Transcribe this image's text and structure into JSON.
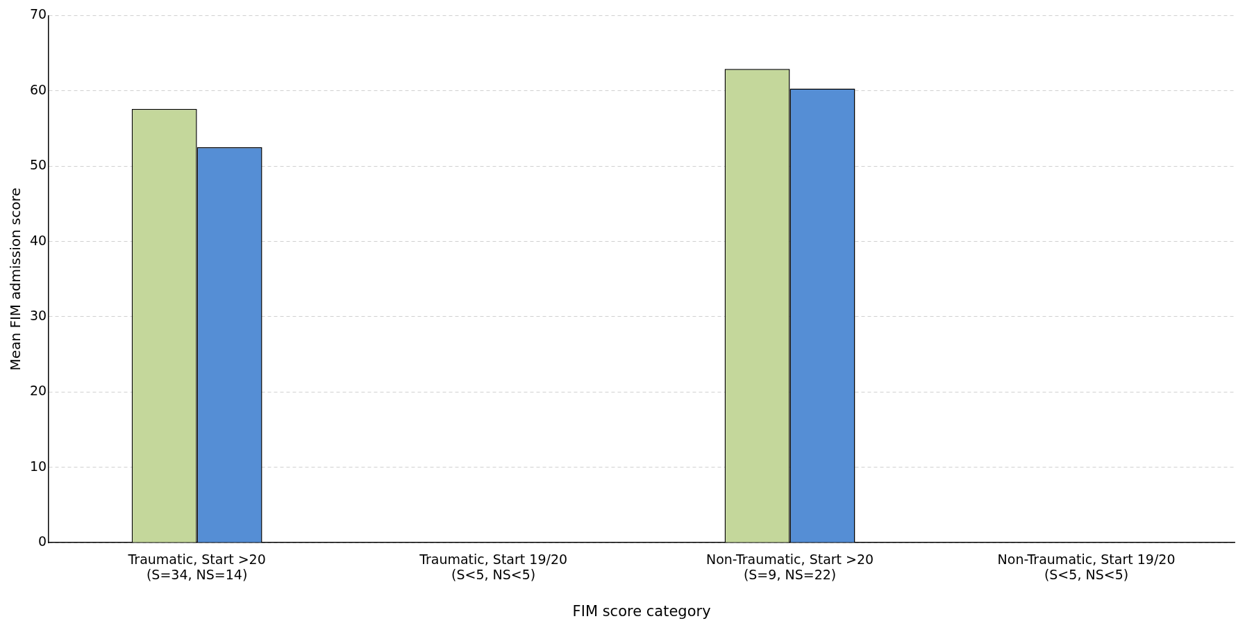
{
  "chart_data": {
    "type": "bar",
    "xlabel": "FIM score category",
    "ylabel": "Mean FIM admission score",
    "categories": [
      "Traumatic, Start >20\n(S=34, NS=14)",
      "Traumatic, Start 19/20\n(S<5, NS<5)",
      "Non-Traumatic, Start >20\n(S=9, NS=22)",
      "Non-Traumatic, Start 19/20\n(S<5, NS<5)"
    ],
    "series": [
      {
        "color": "#c4d79b",
        "values": [
          57.6,
          null,
          62.9,
          null
        ]
      },
      {
        "color": "#558ed5",
        "values": [
          52.5,
          null,
          60.3,
          null
        ]
      }
    ],
    "ylim": [
      0,
      70
    ],
    "yticks": [
      0,
      10,
      20,
      30,
      40,
      50,
      60,
      70
    ],
    "grid": "y"
  }
}
